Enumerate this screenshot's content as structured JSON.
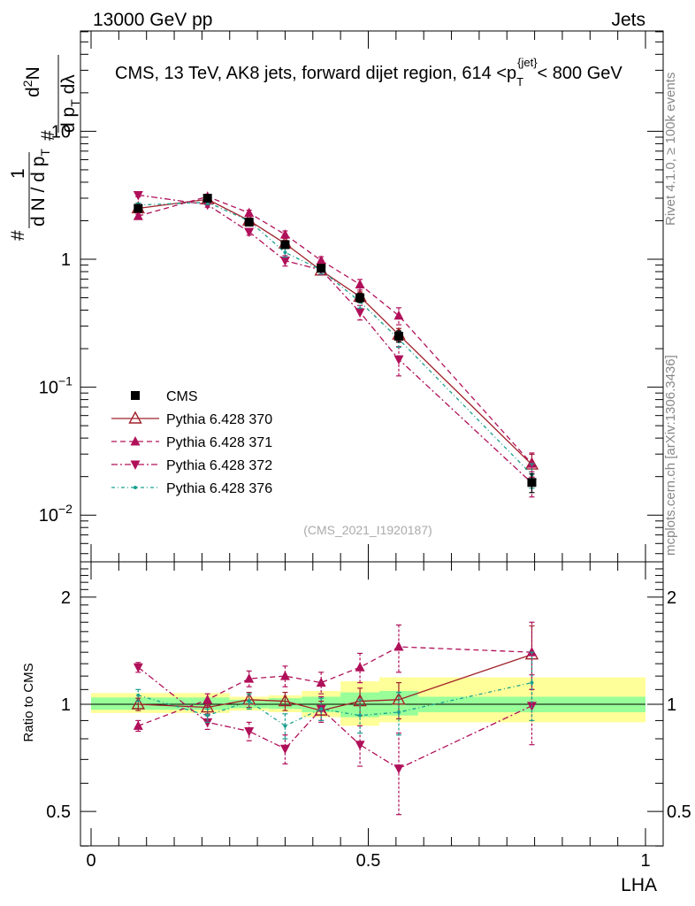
{
  "header": {
    "energy_label": "13000 GeV pp",
    "category_label": "Jets"
  },
  "side_labels": {
    "rivet": "Rivet 4.1.0, ≥ 100k events",
    "mcplots": "mcplots.cern.ch [arXiv:1306.3436]"
  },
  "watermark": "(CMS_2021_I1920187)",
  "chart_data": {
    "type": "line",
    "title": "CMS, 13 TeV, AK8 jets, forward dijet region, 614 <p_T^{jet}< 800 GeV",
    "title_parts": {
      "prefix": "CMS, 13 TeV, AK8 jets, forward dijet region, 614 <p",
      "sub": "T",
      "sup": "{jet}",
      "suffix": "< 800 GeV"
    },
    "ylabel_main": "1/dN/dp_T d^2N/dp_T dlambda",
    "ylabel_ratio": "Ratio to CMS",
    "xlabel": "LHA",
    "xlim": [
      0,
      1
    ],
    "ylim_main": [
      0.005,
      60
    ],
    "ylim_ratio": [
      0.4,
      2.4
    ],
    "yscale": "log",
    "x_ticks": [
      "0",
      "0.5",
      "1"
    ],
    "y_ticks_main": [
      "10",
      "1",
      "10^-1",
      "10^-2"
    ],
    "y_ticks_ratio": [
      "2",
      "1",
      "0.5"
    ],
    "band_edges": [
      0.0,
      0.25,
      0.32,
      0.38,
      0.45,
      0.52,
      0.59,
      1.0
    ],
    "band_green": [
      [
        0.965,
        1.045
      ],
      [
        0.975,
        1.03
      ],
      [
        0.97,
        1.04
      ],
      [
        0.95,
        1.05
      ],
      [
        0.92,
        1.08
      ],
      [
        0.93,
        1.09
      ],
      [
        0.95,
        1.05
      ]
    ],
    "band_yellow": [
      [
        0.945,
        1.075
      ],
      [
        0.96,
        1.05
      ],
      [
        0.95,
        1.06
      ],
      [
        0.92,
        1.09
      ],
      [
        0.87,
        1.16
      ],
      [
        0.89,
        1.19
      ],
      [
        0.89,
        1.19
      ]
    ],
    "x": [
      0.085,
      0.21,
      0.285,
      0.35,
      0.415,
      0.485,
      0.555,
      0.795
    ],
    "cms": {
      "name": "CMS",
      "values": [
        2.5,
        3.0,
        1.95,
        1.3,
        0.85,
        0.5,
        0.25,
        0.018
      ],
      "errors": [
        0.12,
        0.1,
        0.08,
        0.07,
        0.05,
        0.04,
        0.025,
        0.003
      ]
    },
    "series": [
      {
        "name": "Pythia 6.428 370",
        "color": "#a0202a",
        "dash": "",
        "marker": "open-triangle-up",
        "ratio": [
          1.0,
          0.98,
          1.03,
          1.02,
          0.96,
          1.02,
          1.03,
          1.38
        ],
        "ratio_err": [
          0.04,
          0.04,
          0.05,
          0.06,
          0.06,
          0.09,
          0.12,
          0.28
        ]
      },
      {
        "name": "Pythia 6.428 371",
        "color": "#b0105a",
        "dash": "6,4",
        "marker": "triangle-up",
        "ratio": [
          0.87,
          1.03,
          1.18,
          1.2,
          1.15,
          1.27,
          1.45,
          1.4
        ],
        "ratio_err": [
          0.03,
          0.04,
          0.06,
          0.08,
          0.08,
          0.12,
          0.22,
          0.3
        ]
      },
      {
        "name": "Pythia 6.428 372",
        "color": "#b0105a",
        "dash": "7,3,2,3",
        "marker": "triangle-down",
        "ratio": [
          1.27,
          0.89,
          0.84,
          0.75,
          0.97,
          0.77,
          0.66,
          0.99
        ],
        "ratio_err": [
          0.04,
          0.04,
          0.05,
          0.07,
          0.08,
          0.1,
          0.17,
          0.22
        ]
      },
      {
        "name": "Pythia 6.428 376",
        "color": "#1aa090",
        "dash": "4,3,1,3",
        "marker": "dot",
        "ratio": [
          1.06,
          0.93,
          1.02,
          0.87,
          0.97,
          0.93,
          0.95,
          1.15
        ],
        "ratio_err": [
          0.04,
          0.04,
          0.05,
          0.07,
          0.07,
          0.1,
          0.13,
          0.25
        ]
      }
    ],
    "legend_position": "lower-left"
  }
}
